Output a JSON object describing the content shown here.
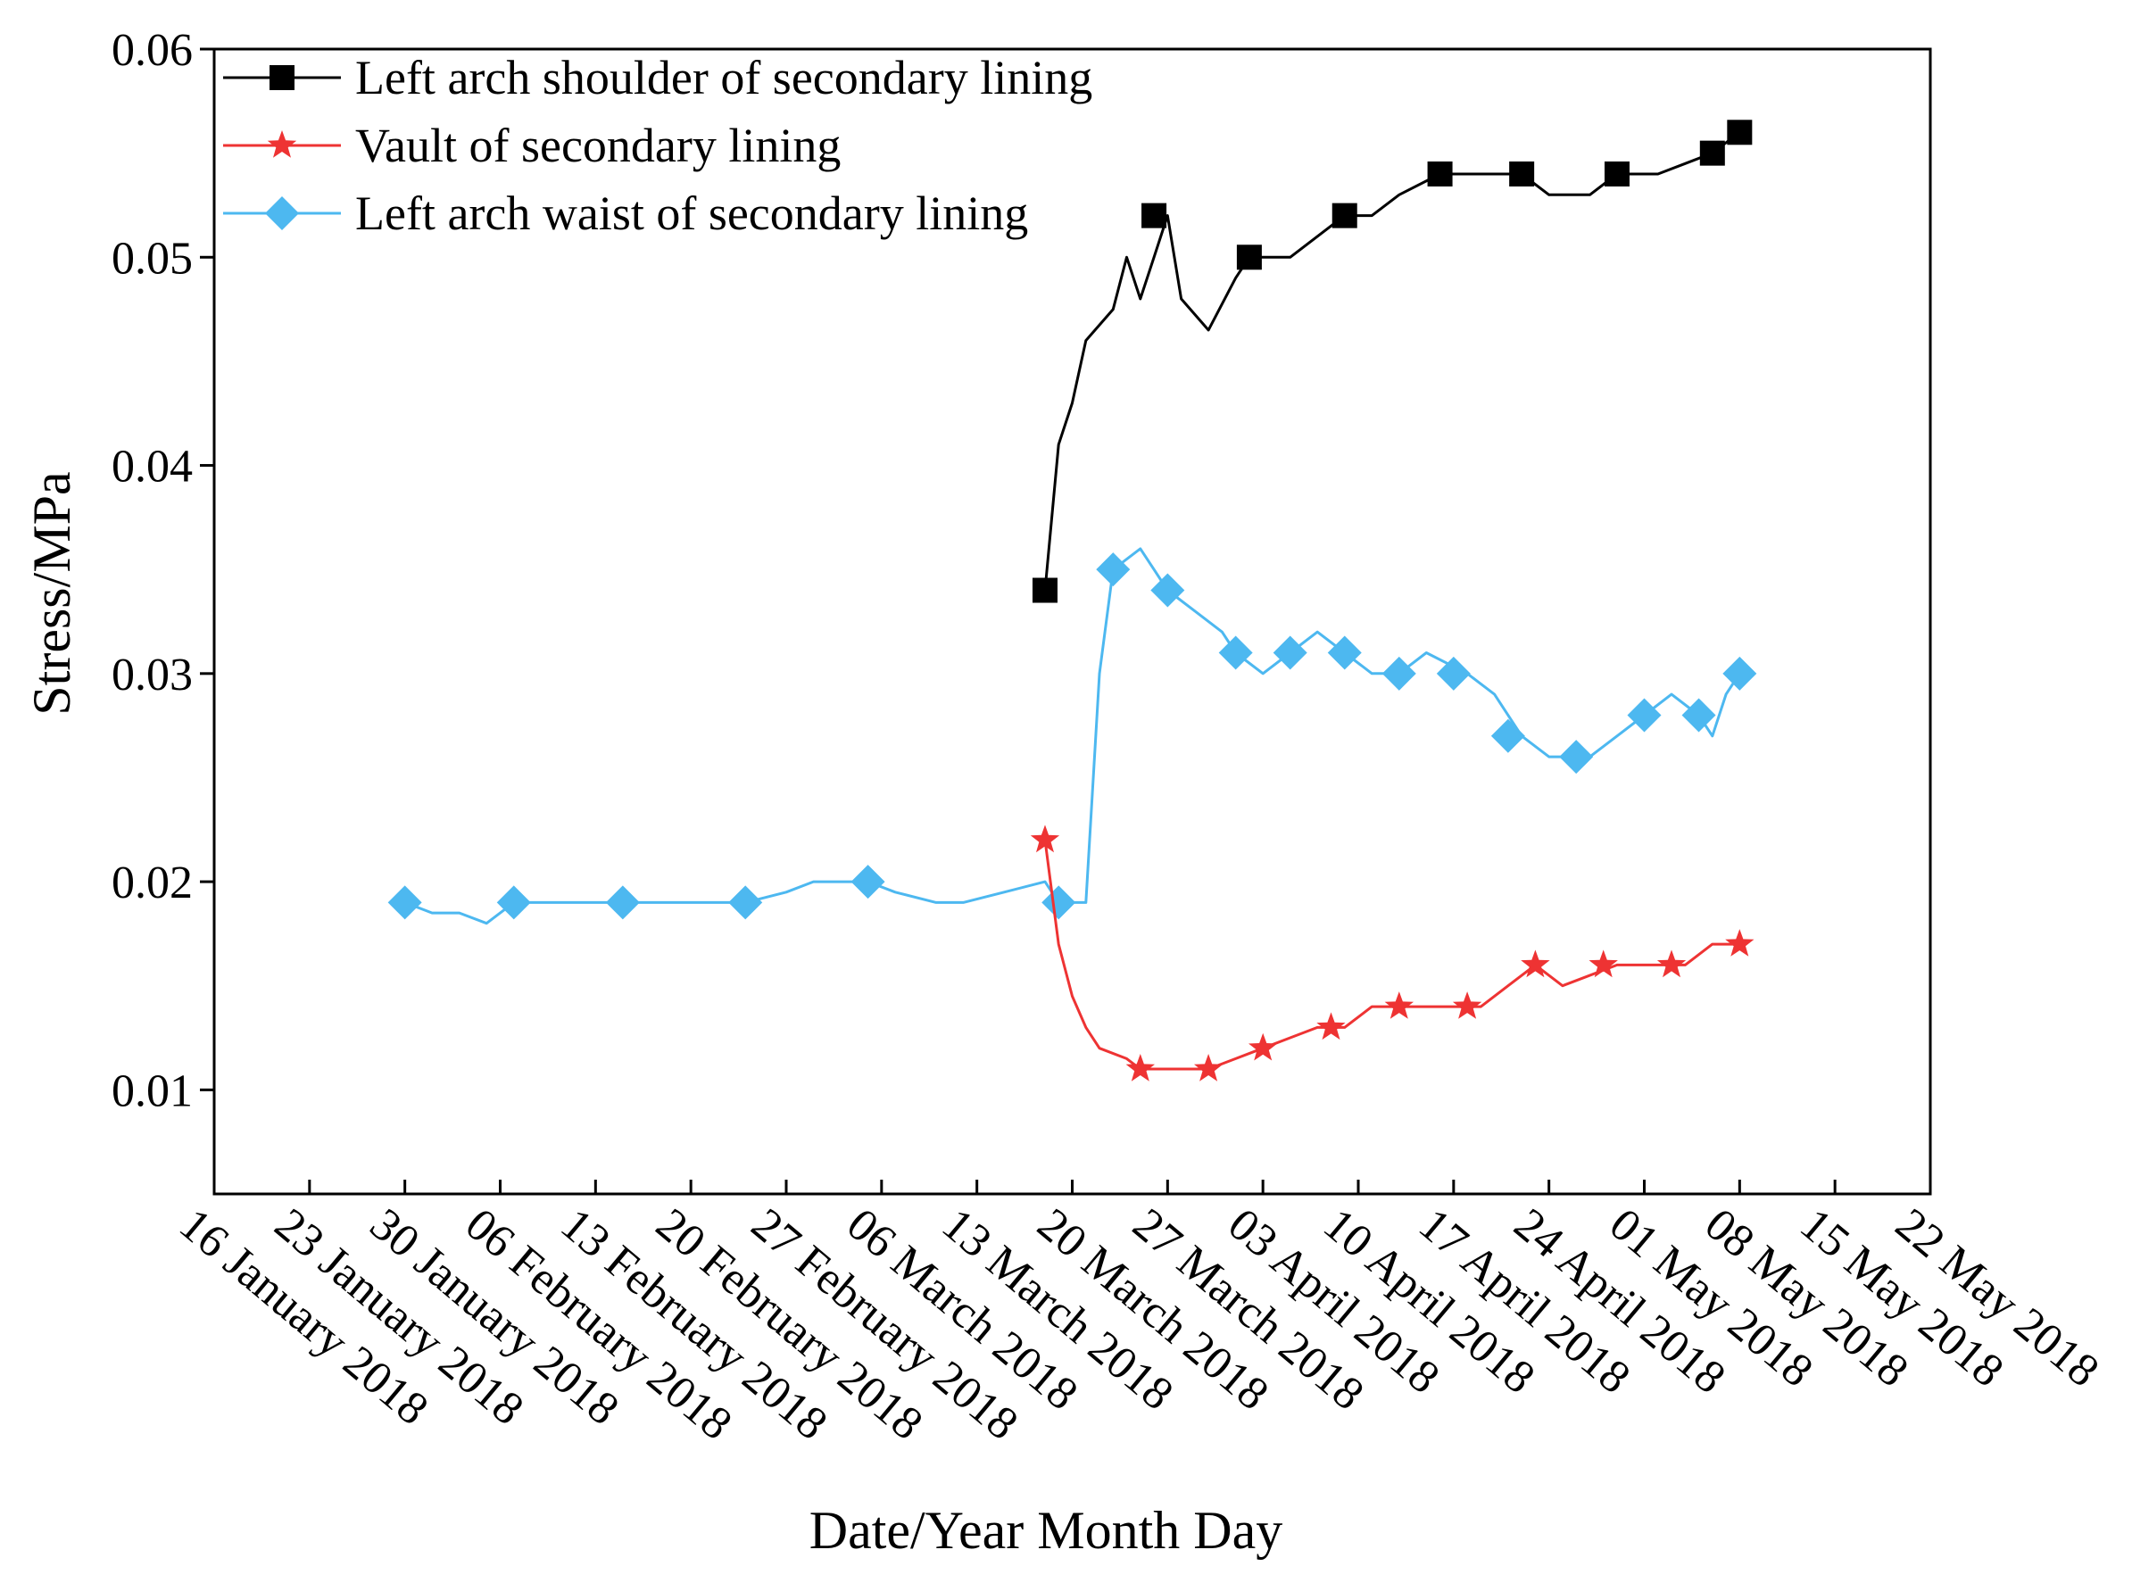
{
  "chart_data": {
    "type": "line",
    "title": "",
    "xlabel": "Date/Year Month Day",
    "ylabel": "Stress/MPa",
    "xlim": [
      "2018-01-16",
      "2018-05-22"
    ],
    "ylim": [
      0.005,
      0.06
    ],
    "x_ticks": [
      "2018-01-16",
      "2018-01-23",
      "2018-01-30",
      "2018-02-06",
      "2018-02-13",
      "2018-02-20",
      "2018-02-27",
      "2018-03-06",
      "2018-03-13",
      "2018-03-20",
      "2018-03-27",
      "2018-04-03",
      "2018-04-10",
      "2018-04-17",
      "2018-04-24",
      "2018-05-01",
      "2018-05-08",
      "2018-05-15",
      "2018-05-22"
    ],
    "x_tick_labels": [
      "16 January 2018",
      "23 January 2018",
      "30 January 2018",
      "06 February 2018",
      "13 February 2018",
      "20 February 2018",
      "27 February 2018",
      "06 March 2018",
      "13 March 2018",
      "20 March 2018",
      "27 March 2018",
      "03 April 2018",
      "10 April 2018",
      "17 April 2018",
      "24 April 2018",
      "01 May 2018",
      "08 May 2018",
      "15 May 2018",
      "22 May 2018"
    ],
    "y_ticks": [
      0.01,
      0.02,
      0.03,
      0.04,
      0.05,
      0.06
    ],
    "y_tick_labels": [
      "0.01",
      "0.02",
      "0.03",
      "0.04",
      "0.05",
      "0.06"
    ],
    "legend_position": "top-left",
    "grid": false,
    "series": [
      {
        "name": "Left arch shoulder of secondary lining",
        "color": "#000000",
        "marker": "square",
        "points": [
          [
            "2018-03-18",
            0.034
          ],
          [
            "2018-03-19",
            0.041
          ],
          [
            "2018-03-20",
            0.043
          ],
          [
            "2018-03-21",
            0.046
          ],
          [
            "2018-03-23",
            0.0475
          ],
          [
            "2018-03-24",
            0.05
          ],
          [
            "2018-03-25",
            0.048
          ],
          [
            "2018-03-26",
            0.05
          ],
          [
            "2018-03-27",
            0.052
          ],
          [
            "2018-03-28",
            0.048
          ],
          [
            "2018-03-30",
            0.0465
          ],
          [
            "2018-04-01",
            0.049
          ],
          [
            "2018-04-02",
            0.05
          ],
          [
            "2018-04-05",
            0.05
          ],
          [
            "2018-04-07",
            0.051
          ],
          [
            "2018-04-09",
            0.052
          ],
          [
            "2018-04-11",
            0.052
          ],
          [
            "2018-04-13",
            0.053
          ],
          [
            "2018-04-16",
            0.054
          ],
          [
            "2018-04-19",
            0.054
          ],
          [
            "2018-04-22",
            0.054
          ],
          [
            "2018-04-24",
            0.053
          ],
          [
            "2018-04-27",
            0.053
          ],
          [
            "2018-04-29",
            0.054
          ],
          [
            "2018-05-02",
            0.054
          ],
          [
            "2018-05-04",
            0.0545
          ],
          [
            "2018-05-06",
            0.055
          ],
          [
            "2018-05-08",
            0.056
          ]
        ],
        "marker_points": [
          [
            "2018-03-18",
            0.034
          ],
          [
            "2018-03-26",
            0.052
          ],
          [
            "2018-04-02",
            0.05
          ],
          [
            "2018-04-09",
            0.052
          ],
          [
            "2018-04-16",
            0.054
          ],
          [
            "2018-04-22",
            0.054
          ],
          [
            "2018-04-29",
            0.054
          ],
          [
            "2018-05-06",
            0.055
          ],
          [
            "2018-05-08",
            0.056
          ]
        ]
      },
      {
        "name": "Vault of secondary lining",
        "color": "#ee3333",
        "marker": "star",
        "points": [
          [
            "2018-03-18",
            0.022
          ],
          [
            "2018-03-19",
            0.017
          ],
          [
            "2018-03-20",
            0.0145
          ],
          [
            "2018-03-21",
            0.013
          ],
          [
            "2018-03-22",
            0.012
          ],
          [
            "2018-03-24",
            0.0115
          ],
          [
            "2018-03-25",
            0.011
          ],
          [
            "2018-03-28",
            0.011
          ],
          [
            "2018-03-30",
            0.011
          ],
          [
            "2018-04-01",
            0.0115
          ],
          [
            "2018-04-03",
            0.012
          ],
          [
            "2018-04-05",
            0.0125
          ],
          [
            "2018-04-07",
            0.013
          ],
          [
            "2018-04-09",
            0.013
          ],
          [
            "2018-04-11",
            0.014
          ],
          [
            "2018-04-14",
            0.014
          ],
          [
            "2018-04-17",
            0.014
          ],
          [
            "2018-04-19",
            0.014
          ],
          [
            "2018-04-21",
            0.015
          ],
          [
            "2018-04-23",
            0.016
          ],
          [
            "2018-04-25",
            0.015
          ],
          [
            "2018-04-29",
            0.016
          ],
          [
            "2018-05-01",
            0.016
          ],
          [
            "2018-05-04",
            0.016
          ],
          [
            "2018-05-06",
            0.017
          ],
          [
            "2018-05-08",
            0.017
          ]
        ],
        "marker_points": [
          [
            "2018-03-18",
            0.022
          ],
          [
            "2018-03-25",
            0.011
          ],
          [
            "2018-03-30",
            0.011
          ],
          [
            "2018-04-03",
            0.012
          ],
          [
            "2018-04-08",
            0.013
          ],
          [
            "2018-04-13",
            0.014
          ],
          [
            "2018-04-18",
            0.014
          ],
          [
            "2018-04-23",
            0.016
          ],
          [
            "2018-04-28",
            0.016
          ],
          [
            "2018-05-03",
            0.016
          ],
          [
            "2018-05-08",
            0.017
          ]
        ]
      },
      {
        "name": "Left arch waist of secondary lining",
        "color": "#4db8f0",
        "marker": "diamond",
        "points": [
          [
            "2018-01-30",
            0.019
          ],
          [
            "2018-02-01",
            0.0185
          ],
          [
            "2018-02-03",
            0.0185
          ],
          [
            "2018-02-05",
            0.018
          ],
          [
            "2018-02-07",
            0.019
          ],
          [
            "2018-02-15",
            0.019
          ],
          [
            "2018-02-24",
            0.019
          ],
          [
            "2018-02-27",
            0.0195
          ],
          [
            "2018-03-01",
            0.02
          ],
          [
            "2018-03-05",
            0.02
          ],
          [
            "2018-03-07",
            0.0195
          ],
          [
            "2018-03-10",
            0.019
          ],
          [
            "2018-03-12",
            0.019
          ],
          [
            "2018-03-15",
            0.0195
          ],
          [
            "2018-03-18",
            0.02
          ],
          [
            "2018-03-19",
            0.019
          ],
          [
            "2018-03-21",
            0.019
          ],
          [
            "2018-03-22",
            0.03
          ],
          [
            "2018-03-23",
            0.035
          ],
          [
            "2018-03-25",
            0.036
          ],
          [
            "2018-03-26",
            0.035
          ],
          [
            "2018-03-27",
            0.034
          ],
          [
            "2018-03-29",
            0.033
          ],
          [
            "2018-03-31",
            0.032
          ],
          [
            "2018-04-01",
            0.031
          ],
          [
            "2018-04-03",
            0.03
          ],
          [
            "2018-04-05",
            0.031
          ],
          [
            "2018-04-07",
            0.032
          ],
          [
            "2018-04-09",
            0.031
          ],
          [
            "2018-04-11",
            0.03
          ],
          [
            "2018-04-13",
            0.03
          ],
          [
            "2018-04-15",
            0.031
          ],
          [
            "2018-04-18",
            0.03
          ],
          [
            "2018-04-20",
            0.029
          ],
          [
            "2018-04-22",
            0.027
          ],
          [
            "2018-04-24",
            0.026
          ],
          [
            "2018-04-27",
            0.026
          ],
          [
            "2018-04-29",
            0.027
          ],
          [
            "2018-05-01",
            0.028
          ],
          [
            "2018-05-03",
            0.029
          ],
          [
            "2018-05-05",
            0.028
          ],
          [
            "2018-05-06",
            0.027
          ],
          [
            "2018-05-07",
            0.029
          ],
          [
            "2018-05-08",
            0.03
          ]
        ],
        "marker_points": [
          [
            "2018-01-30",
            0.019
          ],
          [
            "2018-02-07",
            0.019
          ],
          [
            "2018-02-15",
            0.019
          ],
          [
            "2018-02-24",
            0.019
          ],
          [
            "2018-03-05",
            0.02
          ],
          [
            "2018-03-19",
            0.019
          ],
          [
            "2018-03-23",
            0.035
          ],
          [
            "2018-03-27",
            0.034
          ],
          [
            "2018-04-01",
            0.031
          ],
          [
            "2018-04-05",
            0.031
          ],
          [
            "2018-04-09",
            0.031
          ],
          [
            "2018-04-13",
            0.03
          ],
          [
            "2018-04-17",
            0.03
          ],
          [
            "2018-04-21",
            0.027
          ],
          [
            "2018-04-26",
            0.026
          ],
          [
            "2018-05-01",
            0.028
          ],
          [
            "2018-05-05",
            0.028
          ],
          [
            "2018-05-08",
            0.03
          ]
        ]
      }
    ]
  }
}
